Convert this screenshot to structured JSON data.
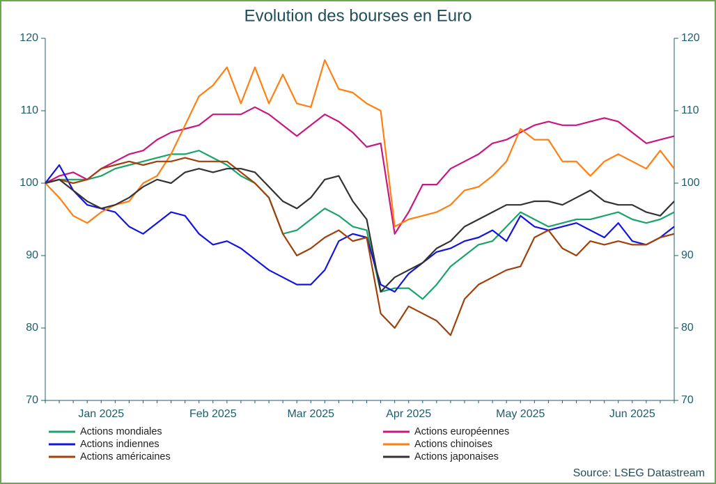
{
  "chart_data": {
    "type": "line",
    "title": "Evolution des bourses en Euro",
    "source": "Source: LSEG Datastream",
    "categories": [
      null,
      null,
      null,
      null,
      "Jan 2025",
      null,
      null,
      null,
      null,
      null,
      null,
      null,
      "Feb 2025",
      null,
      null,
      null,
      null,
      null,
      null,
      "Mar 2025",
      null,
      null,
      null,
      null,
      null,
      null,
      "Apr 2025",
      null,
      null,
      null,
      null,
      null,
      null,
      null,
      "May 2025",
      null,
      null,
      null,
      null,
      null,
      null,
      null,
      "Jun 2025",
      null,
      null,
      null
    ],
    "ylim": [
      70,
      120
    ],
    "yticks": [
      70,
      80,
      90,
      100,
      110,
      120
    ],
    "y2lim": [
      70,
      120
    ],
    "y2ticks": [
      70,
      80,
      90,
      100,
      110,
      120
    ],
    "series": [
      {
        "name": "Actions mondiales",
        "color": "#1aa36a",
        "values": [
          100,
          100.5,
          100.5,
          100.5,
          101,
          102,
          102.5,
          103,
          103.5,
          104,
          104,
          104.5,
          103.5,
          102.5,
          101,
          100,
          98,
          93,
          93.5,
          95,
          96.5,
          95.5,
          94,
          93.5,
          85,
          85.5,
          85.5,
          84,
          86,
          88.5,
          90,
          91.5,
          92,
          94,
          96,
          95,
          94,
          94.5,
          95,
          95,
          95.5,
          96,
          95,
          94.5,
          95,
          96
        ]
      },
      {
        "name": "Actions européennes",
        "color": "#c8177f",
        "values": [
          100,
          101,
          101.5,
          100.5,
          102,
          103,
          104,
          104.5,
          106,
          107,
          107.5,
          108,
          109.5,
          109.5,
          109.5,
          110.5,
          109.5,
          108,
          106.5,
          108,
          109.5,
          108.5,
          107,
          105,
          105.5,
          93,
          96,
          99.8,
          99.8,
          102,
          103,
          104,
          105.5,
          106,
          107,
          108,
          108.5,
          108,
          108,
          108.5,
          109,
          108.5,
          107,
          105.5,
          106,
          106.5
        ]
      },
      {
        "name": "Actions indiennes",
        "color": "#1414e0",
        "values": [
          100,
          102.5,
          99,
          97,
          96.5,
          96,
          94,
          93,
          94.5,
          96,
          95.5,
          93,
          91.5,
          92,
          91,
          89.5,
          88,
          87,
          86,
          86,
          88,
          92,
          93,
          92.5,
          86,
          85,
          87.5,
          89,
          90.5,
          91,
          92,
          92.5,
          93.5,
          92,
          95.5,
          94,
          93.5,
          94,
          94.5,
          93.5,
          92.5,
          94.5,
          92,
          91.5,
          92.5,
          94
        ]
      },
      {
        "name": "Actions chinoises",
        "color": "#ff7f10",
        "values": [
          100,
          98,
          95.5,
          94.5,
          96,
          97,
          97.5,
          100,
          101,
          104,
          108,
          112,
          113.5,
          116,
          111,
          116,
          111,
          115,
          111,
          110.5,
          117,
          113,
          112.5,
          111,
          110,
          94,
          95,
          95.5,
          96,
          97,
          99,
          99.5,
          101,
          103,
          107.5,
          106,
          106,
          103,
          103,
          101,
          103,
          104,
          103,
          102,
          104.5,
          102
        ]
      },
      {
        "name": "Actions américaines",
        "color": "#a0400a",
        "values": [
          100,
          100.5,
          100,
          100.5,
          102,
          102.5,
          103,
          102.5,
          103,
          103,
          103.5,
          103,
          103,
          103,
          101.5,
          100,
          98,
          93,
          90,
          91,
          92.5,
          93.5,
          92,
          92.5,
          82,
          80,
          83,
          82,
          81,
          79,
          84,
          86,
          87,
          88,
          88.5,
          92.5,
          93.5,
          91,
          90,
          92,
          91.5,
          92,
          91.5,
          91.5,
          92.5,
          93
        ]
      },
      {
        "name": "Actions japonaises",
        "color": "#333333",
        "values": [
          100,
          100.5,
          99,
          97.5,
          96.5,
          97,
          98,
          99.5,
          100.5,
          100,
          101.5,
          102,
          101.5,
          102,
          102,
          101.5,
          99.5,
          97.5,
          96.5,
          98,
          100.5,
          101,
          97.5,
          95,
          85,
          87,
          88,
          89,
          91,
          92,
          94,
          95,
          96,
          97,
          97,
          97.5,
          97.5,
          97,
          98,
          99,
          97.5,
          97,
          97,
          96,
          95.5,
          97.5
        ]
      }
    ]
  }
}
